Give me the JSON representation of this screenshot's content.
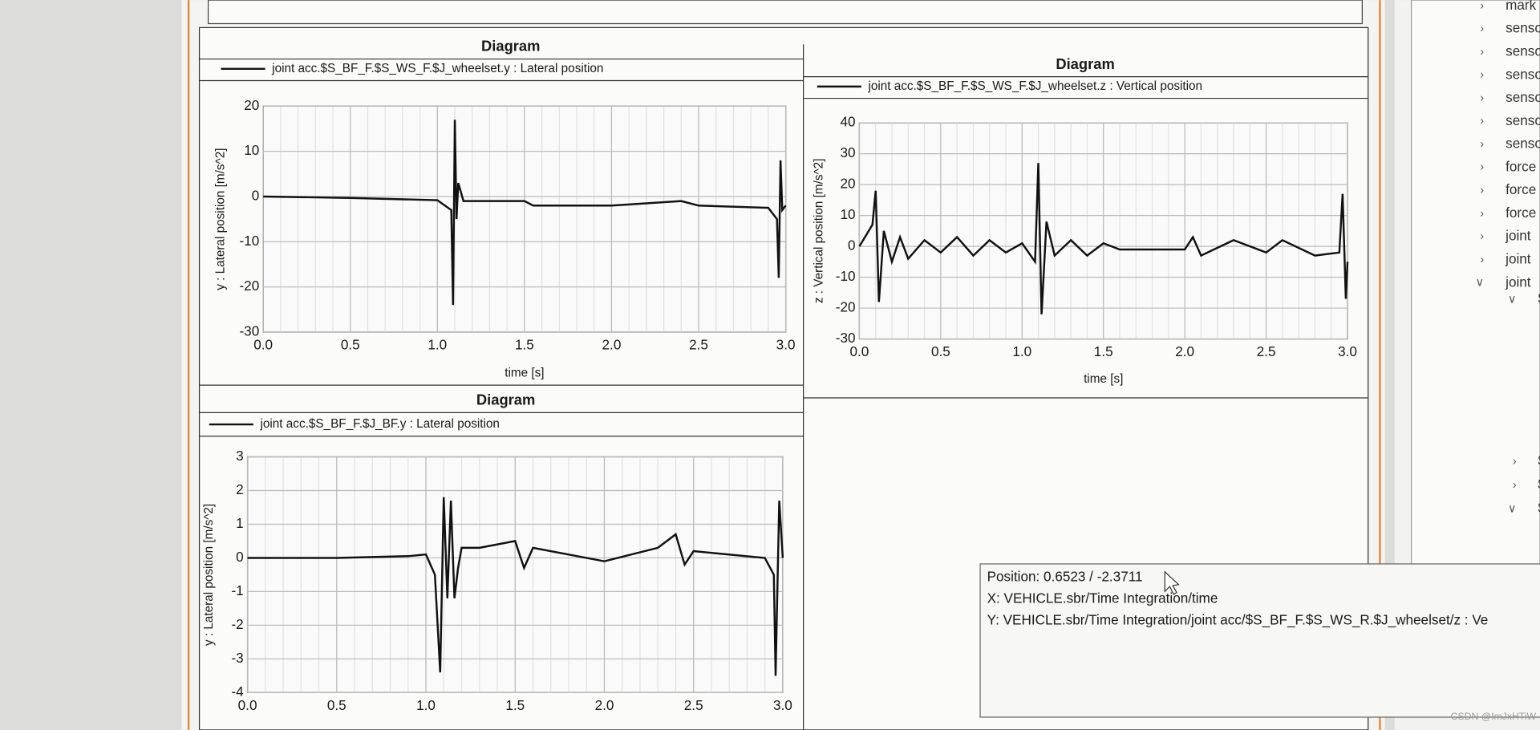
{
  "diagrams": [
    {
      "title": "Diagram",
      "legend": "joint acc.$S_BF_F.$S_WS_F.$J_wheelset.y  : Lateral position",
      "ylabel": "y  : Lateral position [m/s^2]",
      "xlabel": "time [s]",
      "xlim": [
        0,
        3
      ],
      "ylim": [
        -30,
        20
      ],
      "xticks": [
        {
          "value": 0,
          "label": "0.0"
        },
        0.5,
        {
          "value": 1,
          "label": "1.0"
        },
        1.5,
        {
          "value": 2,
          "label": "2.0"
        },
        2.5,
        {
          "value": 3,
          "label": "3.0"
        }
      ],
      "yticks": [
        -30,
        -20,
        -10,
        0,
        10,
        20
      ],
      "x": [
        0,
        0.5,
        1.0,
        1.08,
        1.09,
        1.1,
        1.11,
        1.12,
        1.15,
        1.2,
        1.5,
        1.55,
        2.0,
        2.4,
        2.5,
        2.9,
        2.95,
        2.96,
        2.97,
        2.98,
        3.0
      ],
      "values": [
        0,
        -0.3,
        -0.8,
        -3,
        -24,
        17,
        -5,
        3,
        -1,
        -1,
        -1,
        -2,
        -2,
        -1,
        -2,
        -2.5,
        -5,
        -18,
        8,
        -3,
        -2
      ]
    },
    {
      "title": "Diagram",
      "legend": "joint acc.$S_BF_F.$S_WS_F.$J_wheelset.z  : Vertical position",
      "ylabel": "z  : Vertical position [m/s^2]",
      "xlabel": "time [s]",
      "xlim": [
        0,
        3
      ],
      "ylim": [
        -30,
        40
      ],
      "xticks": [
        {
          "value": 0,
          "label": "0.0"
        },
        0.5,
        {
          "value": 1,
          "label": "1.0"
        },
        1.5,
        {
          "value": 2,
          "label": "2.0"
        },
        2.5,
        {
          "value": 3,
          "label": "3.0"
        }
      ],
      "yticks": [
        -30,
        -20,
        -10,
        0,
        10,
        20,
        30,
        40
      ],
      "x": [
        0,
        0.08,
        0.1,
        0.12,
        0.15,
        0.2,
        0.25,
        0.3,
        0.4,
        0.5,
        0.6,
        0.7,
        0.8,
        0.9,
        1.0,
        1.08,
        1.1,
        1.12,
        1.15,
        1.2,
        1.3,
        1.4,
        1.5,
        1.6,
        1.8,
        2.0,
        2.05,
        2.1,
        2.3,
        2.5,
        2.6,
        2.8,
        2.95,
        2.97,
        2.99,
        3.0
      ],
      "values": [
        0,
        7,
        18,
        -18,
        5,
        -5,
        3,
        -4,
        2,
        -2,
        3,
        -3,
        2,
        -2,
        1,
        -5,
        27,
        -22,
        8,
        -3,
        2,
        -3,
        1,
        -1,
        -1,
        -1,
        3,
        -3,
        2,
        -2,
        2,
        -3,
        -2,
        17,
        -17,
        -5
      ]
    },
    {
      "title": "Diagram",
      "legend": "joint acc.$S_BF_F.$J_BF.y  : Lateral position",
      "ylabel": "y  : Lateral position [m/s^2]",
      "xlim": [
        0,
        3
      ],
      "ylim": [
        -4,
        3
      ],
      "xticks": [
        {
          "value": 0,
          "label": "0.0"
        },
        0.5,
        {
          "value": 1,
          "label": "1.0"
        },
        1.5,
        {
          "value": 2,
          "label": "2.0"
        },
        2.5,
        {
          "value": 3,
          "label": "3.0"
        }
      ],
      "yticks": [
        -4,
        -3,
        -2,
        -1,
        0,
        1,
        2,
        3
      ],
      "x": [
        0,
        0.5,
        0.9,
        1.0,
        1.05,
        1.08,
        1.1,
        1.12,
        1.14,
        1.16,
        1.18,
        1.2,
        1.3,
        1.5,
        1.55,
        1.6,
        2.0,
        2.3,
        2.4,
        2.45,
        2.5,
        2.9,
        2.95,
        2.96,
        2.98,
        3.0
      ],
      "values": [
        0,
        0,
        0.05,
        0.1,
        -0.5,
        -3.4,
        1.8,
        -1.2,
        1.7,
        -1.2,
        -0.3,
        0.3,
        0.3,
        0.5,
        -0.3,
        0.3,
        -0.1,
        0.3,
        0.7,
        -0.2,
        0.2,
        0,
        -0.5,
        -3.5,
        1.7,
        0
      ]
    }
  ],
  "sidebar": {
    "items": [
      "mark",
      "senso",
      "senso",
      "senso",
      "senso",
      "senso",
      "senso",
      "force",
      "force",
      "force",
      "joint",
      "joint",
      "joint",
      "$",
      "$",
      "$",
      "$"
    ]
  },
  "tooltip": {
    "position": "Position: 0.6523 / -2.3711",
    "x": "X: VEHICLE.sbr/Time Integration/time",
    "y": "Y: VEHICLE.sbr/Time Integration/joint acc/$S_BF_F.$S_WS_R.$J_wheelset/z  : Ve"
  },
  "watermark": "CSDN @ImJxHTiW"
}
